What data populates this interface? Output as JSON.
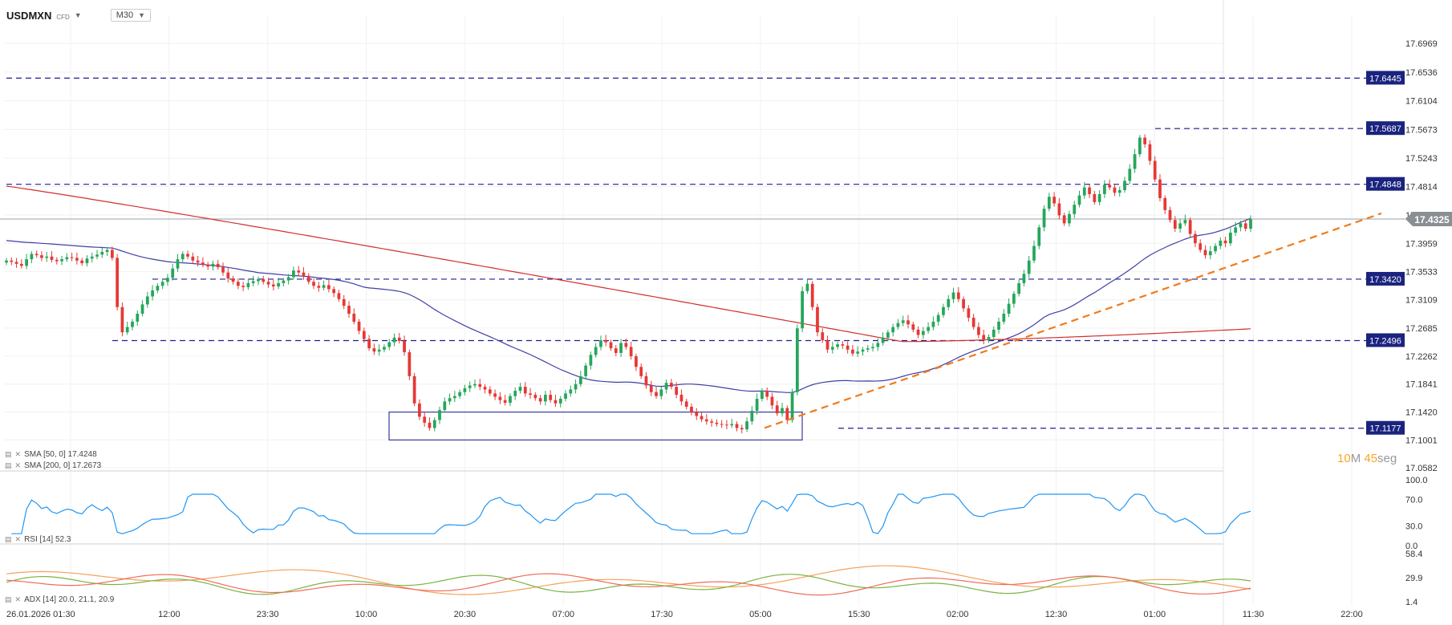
{
  "header": {
    "symbol": "USDMXN",
    "symbol_badge": "CFD",
    "timeframe": "M30",
    "caret_icon": "chevron-down-icon"
  },
  "colors": {
    "up": "#26a65b",
    "down": "#e53935",
    "sma50": "#3f3fa8",
    "sma200": "#d32f2f",
    "level_line": "#1f1f8f",
    "level_badge": "#1a237e",
    "trendline": "#f07b1b",
    "rsi": "#2196f3",
    "adx": "#f5a25d",
    "di_plus": "#7cb342",
    "di_minus": "#ef6c5a",
    "current_price_badge": "#8a8f94"
  },
  "legends": {
    "sma50": "SMA [50, 0] 17.4248",
    "sma200": "SMA [200, 0] 17.2673",
    "rsi": "RSI [14] 52.3",
    "adx": "ADX [14] 20.0, 21.1, 20.9"
  },
  "timer": {
    "minutes": "10",
    "minutes_unit": "M",
    "seconds": "45",
    "seconds_unit": "seg"
  },
  "chart_data": [
    {
      "type": "candlestick",
      "name": "USDMXN M30",
      "y_ticks": [
        "17.6969",
        "17.6536",
        "17.6104",
        "17.5673",
        "17.5243",
        "17.4814",
        "17.4386",
        "17.3959",
        "17.3533",
        "17.3109",
        "17.2685",
        "17.2262",
        "17.1841",
        "17.1420",
        "17.1001",
        "17.0582"
      ],
      "ylim": [
        17.0582,
        17.6969
      ],
      "x_ticks": [
        "26.01.2026  01:30",
        "12:00",
        "23:30",
        "10:00",
        "20:30",
        "07:00",
        "17:30",
        "05:00",
        "15:30",
        "02:00",
        "12:30",
        "01:00",
        "11:30",
        "22:00"
      ],
      "current_price": "17.4325",
      "levels": [
        "17.6445",
        "17.5687",
        "17.4848",
        "17.3420",
        "17.2496",
        "17.1177"
      ],
      "closes": [
        17.37,
        17.368,
        17.365,
        17.362,
        17.372,
        17.38,
        17.378,
        17.374,
        17.376,
        17.371,
        17.369,
        17.372,
        17.375,
        17.374,
        17.37,
        17.366,
        17.373,
        17.376,
        17.379,
        17.383,
        17.386,
        17.374,
        17.3,
        17.262,
        17.27,
        17.278,
        17.29,
        17.304,
        17.316,
        17.325,
        17.332,
        17.338,
        17.344,
        17.358,
        17.372,
        17.38,
        17.376,
        17.37,
        17.367,
        17.364,
        17.361,
        17.365,
        17.36,
        17.352,
        17.343,
        17.338,
        17.332,
        17.33,
        17.336,
        17.339,
        17.342,
        17.338,
        17.334,
        17.331,
        17.336,
        17.34,
        17.345,
        17.355,
        17.352,
        17.347,
        17.338,
        17.332,
        17.329,
        17.333,
        17.327,
        17.321,
        17.312,
        17.302,
        17.29,
        17.278,
        17.264,
        17.252,
        17.238,
        17.233,
        17.236,
        17.24,
        17.247,
        17.254,
        17.249,
        17.232,
        17.196,
        17.155,
        17.135,
        17.126,
        17.118,
        17.13,
        17.145,
        17.158,
        17.163,
        17.166,
        17.172,
        17.178,
        17.182,
        17.184,
        17.18,
        17.176,
        17.17,
        17.165,
        17.16,
        17.156,
        17.166,
        17.174,
        17.18,
        17.17,
        17.168,
        17.163,
        17.158,
        17.168,
        17.16,
        17.155,
        17.162,
        17.17,
        17.176,
        17.184,
        17.196,
        17.212,
        17.228,
        17.24,
        17.25,
        17.247,
        17.238,
        17.231,
        17.246,
        17.24,
        17.226,
        17.21,
        17.196,
        17.182,
        17.172,
        17.166,
        17.176,
        17.186,
        17.18,
        17.168,
        17.158,
        17.15,
        17.142,
        17.136,
        17.131,
        17.128,
        17.126,
        17.124,
        17.123,
        17.122,
        17.124,
        17.118,
        17.116,
        17.128,
        17.144,
        17.162,
        17.174,
        17.165,
        17.152,
        17.14,
        17.148,
        17.13,
        17.172,
        17.268,
        17.324,
        17.335,
        17.3,
        17.262,
        17.25,
        17.236,
        17.24,
        17.244,
        17.242,
        17.236,
        17.23,
        17.233,
        17.236,
        17.238,
        17.24,
        17.246,
        17.254,
        17.262,
        17.27,
        17.276,
        17.28,
        17.274,
        17.266,
        17.258,
        17.264,
        17.27,
        17.278,
        17.288,
        17.3,
        17.312,
        17.322,
        17.312,
        17.298,
        17.284,
        17.27,
        17.258,
        17.25,
        17.255,
        17.266,
        17.278,
        17.29,
        17.305,
        17.32,
        17.336,
        17.35,
        17.37,
        17.392,
        17.42,
        17.448,
        17.466,
        17.456,
        17.438,
        17.426,
        17.44,
        17.454,
        17.468,
        17.48,
        17.47,
        17.458,
        17.47,
        17.484,
        17.48,
        17.472,
        17.476,
        17.49,
        17.508,
        17.53,
        17.555,
        17.545,
        17.52,
        17.492,
        17.464,
        17.446,
        17.431,
        17.418,
        17.426,
        17.431,
        17.41,
        17.396,
        17.386,
        17.378,
        17.384,
        17.392,
        17.4,
        17.396,
        17.412,
        17.42,
        17.426,
        17.418,
        17.432
      ]
    },
    {
      "type": "line",
      "name": "RSI [14]",
      "y_ticks": [
        "100.0",
        "70.0",
        "30.0",
        "0.0"
      ],
      "ylim": [
        0,
        100
      ]
    },
    {
      "type": "line",
      "name": "ADX [14]",
      "y_ticks": [
        "58.4",
        "29.9",
        "1.4"
      ],
      "ylim": [
        1.4,
        58.4
      ]
    }
  ]
}
